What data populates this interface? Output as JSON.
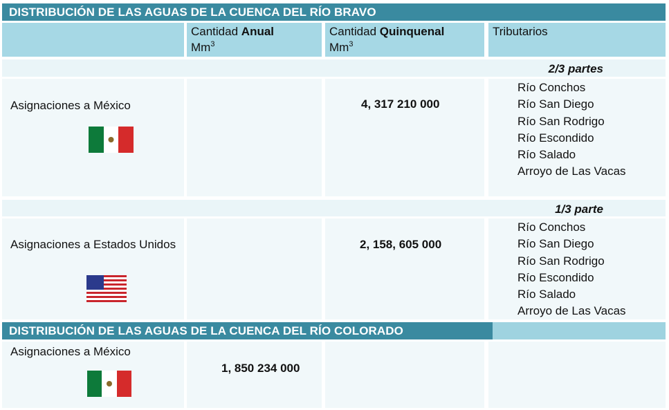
{
  "table": {
    "columns": [
      {
        "text": "Cantidad",
        "bold": "Anual",
        "unit": "Mm",
        "sup": "3"
      },
      {
        "text": "Cantidad",
        "bold": "Quinquenal",
        "unit": "Mm",
        "sup": "3"
      },
      "Tributarios"
    ],
    "bravo": {
      "title": "DISTRIBUCIÓN DE LAS AGUAS DE LA CUENCA DEL RÍO BRAVO",
      "rows": [
        {
          "share": "2/3 partes",
          "label": "Asignaciones a México",
          "quinquenal": "4, 317 210 000",
          "tributaries": [
            "Río Conchos",
            "Río San Diego",
            "Río San Rodrigo",
            "Río Escondido",
            "Río Salado",
            "Arroyo de Las Vacas"
          ]
        },
        {
          "share": "1/3 parte",
          "label": "Asignaciones a Estados Unidos",
          "quinquenal": "2, 158, 605 000",
          "tributaries": [
            "Río Conchos",
            "Río San Diego",
            "Río San Rodrigo",
            "Río Escondido",
            "Río Salado",
            "Arroyo de Las Vacas"
          ]
        }
      ]
    },
    "colorado": {
      "title": "DISTRIBUCIÓN DE LAS AGUAS DE LA CUENCA DEL RÍO COLORADO",
      "rows": [
        {
          "label": "Asignaciones a México",
          "anual": "1, 850 234 000"
        }
      ]
    }
  }
}
